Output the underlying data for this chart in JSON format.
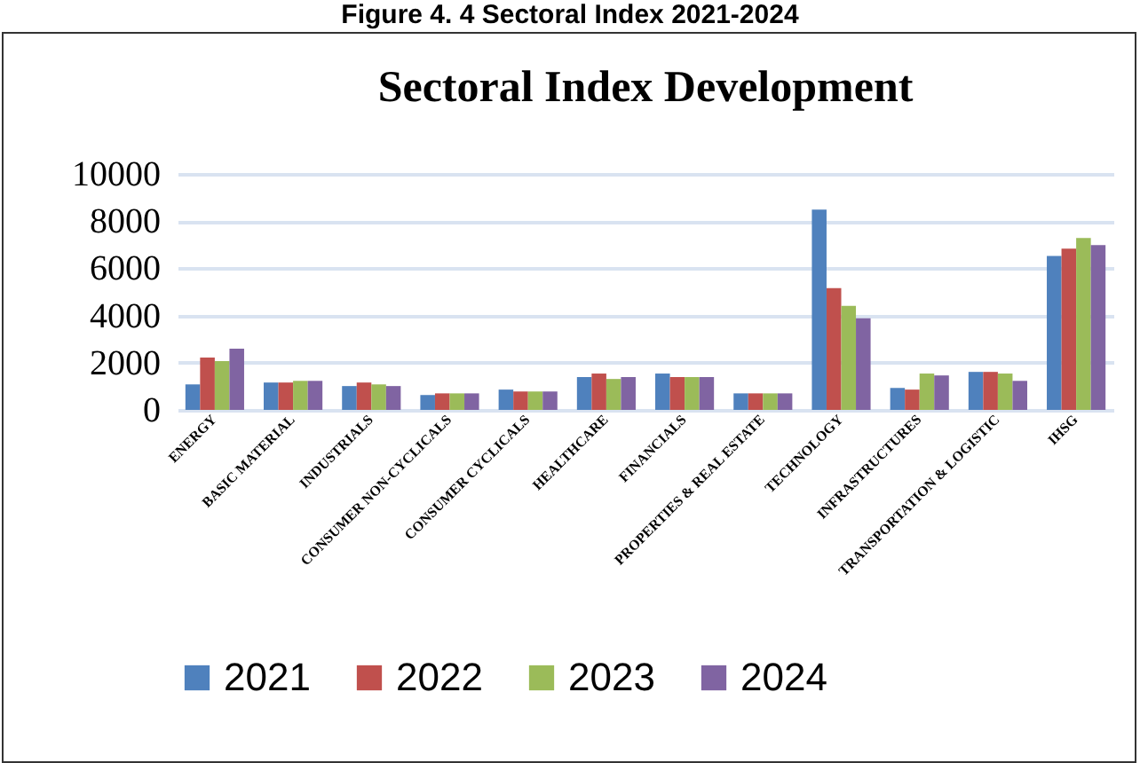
{
  "chart_data": {
    "type": "bar",
    "title": "Sectoral Index Development",
    "annotations": [
      "Figure 4. 4 Sectoral Index 2021-2024"
    ],
    "categories": [
      "ENERGY",
      "BASIC MATERIAL",
      "INDUSTRIALS",
      "CONSUMER NON-CYCLICALS",
      "CONSUMER CYCLICALS",
      "HEALTHCARE",
      "FINANCIALS",
      "PROPERTIES & REAL ESTATE",
      "TECHNOLOGY",
      "INFRASTRUCTURES",
      "TRANSPORTATION & LOGISTIC",
      "IHSG"
    ],
    "series": [
      {
        "name": "2021",
        "color": "#4f81bd",
        "values": [
          1080,
          1160,
          1010,
          630,
          860,
          1390,
          1540,
          700,
          8490,
          930,
          1610,
          6520
        ]
      },
      {
        "name": "2022",
        "color": "#c0504d",
        "values": [
          2220,
          1160,
          1160,
          700,
          780,
          1540,
          1390,
          700,
          5160,
          860,
          1610,
          6830
        ]
      },
      {
        "name": "2023",
        "color": "#9bbb59",
        "values": [
          2070,
          1230,
          1080,
          700,
          780,
          1310,
          1390,
          700,
          4410,
          1540,
          1540,
          7280
        ]
      },
      {
        "name": "2024",
        "color": "#8064a2",
        "values": [
          2590,
          1230,
          1010,
          700,
          780,
          1390,
          1390,
          700,
          3880,
          1460,
          1230,
          6980
        ]
      }
    ],
    "ylim": [
      0,
      10000
    ],
    "yticks": [
      0,
      2000,
      4000,
      6000,
      8000,
      10000
    ],
    "grid": "y",
    "legend": "bottom"
  }
}
